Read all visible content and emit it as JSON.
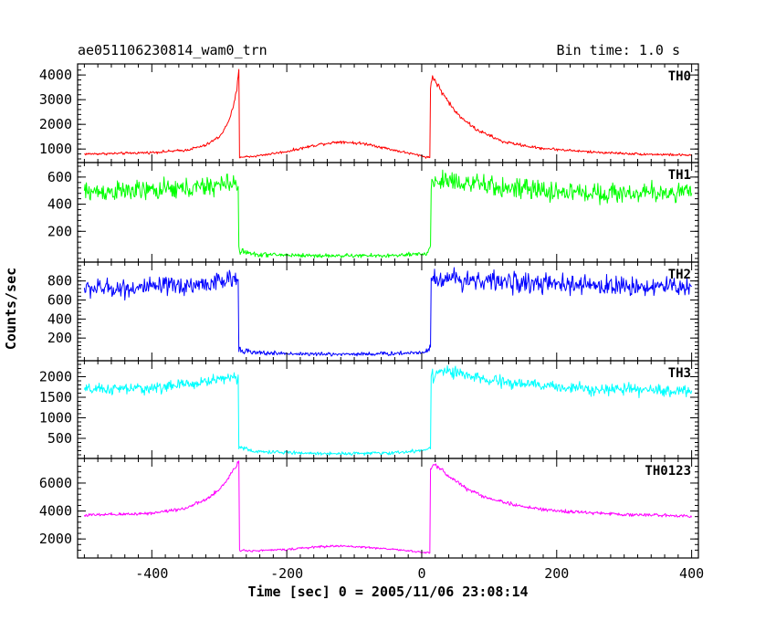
{
  "chart_data": {
    "type": "line",
    "title_left": "ae051106230814_wam0_trn",
    "title_right": "Bin time: 1.0 s",
    "xlabel": "Time [sec] 0 = 2005/11/06 23:08:14",
    "ylabel": "Counts/sec",
    "xlim": [
      -510,
      410
    ],
    "xticks": [
      "-400",
      "-200",
      "0",
      "200",
      "400"
    ],
    "xtick_values": [
      -400,
      -200,
      0,
      200,
      400
    ],
    "grid": false,
    "legend": "none",
    "panels": [
      {
        "name": "TH0",
        "color": "#ff0000",
        "ylim": [
          600,
          4300
        ],
        "yticks": [
          "1000",
          "2000",
          "3000",
          "4000"
        ],
        "ytick_values": [
          1000,
          2000,
          3000,
          4000
        ],
        "noise": 40,
        "points": [
          [
            -500,
            800
          ],
          [
            -450,
            820
          ],
          [
            -400,
            860
          ],
          [
            -350,
            950
          ],
          [
            -320,
            1150
          ],
          [
            -300,
            1500
          ],
          [
            -290,
            1900
          ],
          [
            -280,
            2600
          ],
          [
            -274,
            3400
          ],
          [
            -271,
            4200
          ],
          [
            -270,
            680
          ],
          [
            -250,
            700
          ],
          [
            -200,
            900
          ],
          [
            -150,
            1200
          ],
          [
            -120,
            1300
          ],
          [
            -80,
            1200
          ],
          [
            -40,
            950
          ],
          [
            -10,
            780
          ],
          [
            12,
            650
          ],
          [
            13,
            3500
          ],
          [
            16,
            3950
          ],
          [
            30,
            3300
          ],
          [
            50,
            2500
          ],
          [
            80,
            1800
          ],
          [
            120,
            1300
          ],
          [
            170,
            1050
          ],
          [
            250,
            880
          ],
          [
            320,
            800
          ],
          [
            400,
            750
          ]
        ]
      },
      {
        "name": "TH1",
        "color": "#00ff00",
        "ylim": [
          0,
          680
        ],
        "yticks": [
          "200",
          "400",
          "600"
        ],
        "ytick_values": [
          200,
          400,
          600
        ],
        "noise": 30,
        "points": [
          [
            -500,
            490
          ],
          [
            -400,
            500
          ],
          [
            -330,
            520
          ],
          [
            -290,
            550
          ],
          [
            -272,
            560
          ],
          [
            -271,
            60
          ],
          [
            -250,
            30
          ],
          [
            -150,
            20
          ],
          [
            -50,
            20
          ],
          [
            0,
            30
          ],
          [
            10,
            50
          ],
          [
            13,
            80
          ],
          [
            14,
            560
          ],
          [
            40,
            580
          ],
          [
            100,
            530
          ],
          [
            200,
            490
          ],
          [
            300,
            480
          ],
          [
            400,
            490
          ]
        ]
      },
      {
        "name": "TH2",
        "color": "#0000ff",
        "ylim": [
          0,
          960
        ],
        "yticks": [
          "200",
          "400",
          "600",
          "800"
        ],
        "ytick_values": [
          200,
          400,
          600,
          800
        ],
        "noise": 40,
        "points": [
          [
            -500,
            720
          ],
          [
            -400,
            730
          ],
          [
            -330,
            760
          ],
          [
            -290,
            800
          ],
          [
            -272,
            820
          ],
          [
            -271,
            90
          ],
          [
            -250,
            45
          ],
          [
            -150,
            30
          ],
          [
            -50,
            35
          ],
          [
            0,
            50
          ],
          [
            10,
            80
          ],
          [
            13,
            120
          ],
          [
            14,
            810
          ],
          [
            40,
            830
          ],
          [
            100,
            800
          ],
          [
            200,
            760
          ],
          [
            300,
            745
          ],
          [
            400,
            740
          ]
        ]
      },
      {
        "name": "TH3",
        "color": "#00ffff",
        "ylim": [
          100,
          2300
        ],
        "yticks": [
          "500",
          "1000",
          "1500",
          "2000"
        ],
        "ytick_values": [
          500,
          1000,
          1500,
          2000
        ],
        "noise": 55,
        "points": [
          [
            -500,
            1680
          ],
          [
            -400,
            1720
          ],
          [
            -330,
            1850
          ],
          [
            -290,
            1980
          ],
          [
            -272,
            2000
          ],
          [
            -271,
            300
          ],
          [
            -250,
            180
          ],
          [
            -150,
            130
          ],
          [
            -50,
            140
          ],
          [
            0,
            200
          ],
          [
            10,
            260
          ],
          [
            13,
            320
          ],
          [
            14,
            2000
          ],
          [
            30,
            2150
          ],
          [
            60,
            2050
          ],
          [
            100,
            1900
          ],
          [
            200,
            1750
          ],
          [
            300,
            1680
          ],
          [
            400,
            1650
          ]
        ]
      },
      {
        "name": "TH0123",
        "color": "#ff00ff",
        "ylim": [
          900,
          7500
        ],
        "yticks": [
          "2000",
          "4000",
          "6000"
        ],
        "ytick_values": [
          2000,
          4000,
          6000
        ],
        "noise": 60,
        "points": [
          [
            -500,
            3700
          ],
          [
            -450,
            3750
          ],
          [
            -400,
            3850
          ],
          [
            -350,
            4200
          ],
          [
            -320,
            4800
          ],
          [
            -300,
            5500
          ],
          [
            -285,
            6500
          ],
          [
            -274,
            7300
          ],
          [
            -271,
            7600
          ],
          [
            -270,
            1200
          ],
          [
            -250,
            1150
          ],
          [
            -200,
            1250
          ],
          [
            -150,
            1450
          ],
          [
            -120,
            1500
          ],
          [
            -80,
            1400
          ],
          [
            -40,
            1250
          ],
          [
            -10,
            1100
          ],
          [
            12,
            1000
          ],
          [
            13,
            6900
          ],
          [
            18,
            7400
          ],
          [
            40,
            6500
          ],
          [
            70,
            5500
          ],
          [
            100,
            4900
          ],
          [
            150,
            4300
          ],
          [
            200,
            4000
          ],
          [
            300,
            3750
          ],
          [
            400,
            3650
          ]
        ]
      }
    ]
  }
}
